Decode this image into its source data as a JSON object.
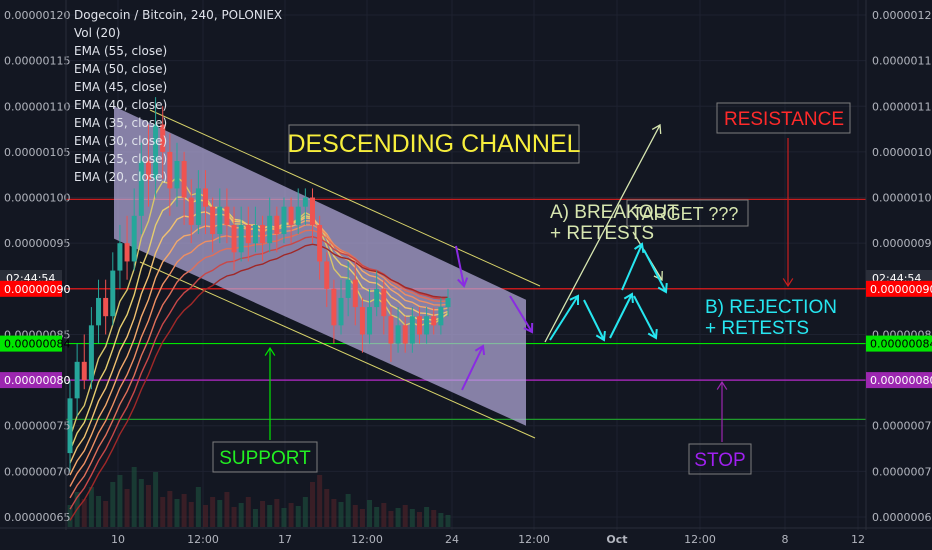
{
  "header": {
    "title": "Dogecoin / Bitcoin, 240, POLONIEX",
    "indicators": [
      "Vol (20)",
      "EMA (55, close)",
      "EMA (50, close)",
      "EMA (45, close)",
      "EMA (40, close)",
      "EMA (35, close)",
      "EMA (30, close)",
      "EMA (25, close)",
      "EMA (20, close)"
    ]
  },
  "price_axis": {
    "ticks": [
      "0.00000120",
      "0.00000115",
      "0.00000110",
      "0.00000105",
      "0.00000100",
      "0.00000095",
      "0.00000090",
      "0.00000085",
      "0.00000080",
      "0.00000075",
      "0.00000070",
      "0.00000065"
    ],
    "countdown": "02:44:54",
    "badges": [
      {
        "label": "0.00000090",
        "color": "#ff0000",
        "text_color": "#ffffff",
        "value": 9e-07
      },
      {
        "label": "0.00000084",
        "color": "#00e600",
        "text_color": "#000000",
        "value": 8.4e-07
      },
      {
        "label": "0.00000080",
        "color": "#9c27b0",
        "text_color": "#ffffff",
        "value": 8e-07
      }
    ]
  },
  "time_axis": {
    "ticks": [
      "10",
      "12:00",
      "17",
      "12:00",
      "24",
      "12:00",
      "Oct",
      "12:00",
      "8",
      "12"
    ]
  },
  "annotations": {
    "channel": "DESCENDING CHANNEL",
    "resistance": "RESISTANCE",
    "support": "SUPPORT",
    "stop": "STOP",
    "breakout_line1": "A) BREAKOUT",
    "breakout_line2": "+ RETESTS",
    "target": "TARGET ???",
    "rejection_line1": "B) REJECTION",
    "rejection_line2": "+ RETESTS"
  },
  "colors": {
    "background": "#131722",
    "resistance": "#ff1a1a",
    "support": "#00e600",
    "stop": "#9c27b0",
    "channel_fill": "#b3a9d9",
    "scenario_a": "#d7e6b0",
    "scenario_b": "#26e6f0",
    "arrow_purple": "#8a2be2"
  },
  "chart_data": {
    "type": "candlestick",
    "price_range": [
      6.4e-07,
      1.22e-06
    ],
    "levels": [
      {
        "name": "RESISTANCE",
        "value": 9.98e-07
      },
      {
        "name": "RESISTANCE",
        "value": 9e-07
      },
      {
        "name": "SUPPORT",
        "value": 8.4e-07
      },
      {
        "name": "STOP",
        "value": 8e-07
      },
      {
        "name": "SUPPORT",
        "value": 7.57e-07
      }
    ],
    "channel": {
      "upper": [
        [
          0.06,
          1.1e-06
        ],
        [
          0.575,
          8.88e-07
        ]
      ],
      "lower": [
        [
          0.06,
          9.55e-07
        ],
        [
          0.575,
          7.5e-07
        ]
      ]
    },
    "candles": [
      [
        7.2e-07,
        7.8e-07,
        7e-07,
        8e-07
      ],
      [
        7.8e-07,
        8.2e-07,
        7.6e-07,
        8.4e-07
      ],
      [
        8.2e-07,
        8e-07,
        7.9e-07,
        8.5e-07
      ],
      [
        8e-07,
        8.6e-07,
        7.9e-07,
        8.8e-07
      ],
      [
        8.6e-07,
        8.9e-07,
        8.4e-07,
        9.1e-07
      ],
      [
        8.9e-07,
        8.7e-07,
        8.5e-07,
        9.1e-07
      ],
      [
        8.7e-07,
        9.2e-07,
        8.6e-07,
        9.4e-07
      ],
      [
        9.2e-07,
        9.5e-07,
        9e-07,
        9.7e-07
      ],
      [
        9.5e-07,
        9.3e-07,
        9.1e-07,
        9.8e-07
      ],
      [
        9.3e-07,
        9.8e-07,
        9.2e-07,
        1.01e-06
      ],
      [
        9.8e-07,
        1.04e-06,
        9.6e-07,
        1.06e-06
      ],
      [
        1.04e-06,
        1.02e-06,
        9.9e-07,
        1.08e-06
      ],
      [
        1.02e-06,
        1.08e-06,
        1e-06,
        1.11e-06
      ],
      [
        1.08e-06,
        1.05e-06,
        1.02e-06,
        1.1e-06
      ],
      [
        1.05e-06,
        1.01e-06,
        9.8e-07,
        1.07e-06
      ],
      [
        1.01e-06,
        1.04e-06,
        9.9e-07,
        1.06e-06
      ],
      [
        1.04e-06,
        1e-06,
        9.7e-07,
        1.05e-06
      ],
      [
        1e-06,
        9.7e-07,
        9.5e-07,
        1.02e-06
      ],
      [
        9.7e-07,
        1.01e-06,
        9.6e-07,
        1.03e-06
      ],
      [
        1.01e-06,
        9.9e-07,
        9.6e-07,
        1.03e-06
      ],
      [
        9.9e-07,
        9.6e-07,
        9.4e-07,
        1e-06
      ],
      [
        9.6e-07,
        9.9e-07,
        9.5e-07,
        1.01e-06
      ],
      [
        9.9e-07,
        9.7e-07,
        9.5e-07,
        1.01e-06
      ],
      [
        9.7e-07,
        9.4e-07,
        9.2e-07,
        9.9e-07
      ],
      [
        9.4e-07,
        9.7e-07,
        9.3e-07,
        9.9e-07
      ],
      [
        9.7e-07,
        9.5e-07,
        9.3e-07,
        9.9e-07
      ],
      [
        9.5e-07,
        9.7e-07,
        9.4e-07,
        9.9e-07
      ],
      [
        9.7e-07,
        9.5e-07,
        9.3e-07,
        9.8e-07
      ],
      [
        9.5e-07,
        9.8e-07,
        9.4e-07,
        1e-06
      ],
      [
        9.8e-07,
        9.6e-07,
        9.4e-07,
        9.9e-07
      ],
      [
        9.6e-07,
        9.9e-07,
        9.5e-07,
        1e-06
      ],
      [
        9.9e-07,
        9.7e-07,
        9.5e-07,
        1e-06
      ],
      [
        9.7e-07,
        9.9e-07,
        9.6e-07,
        1.01e-06
      ],
      [
        9.9e-07,
        1e-06,
        9.7e-07,
        1.01e-06
      ],
      [
        1e-06,
        9.7e-07,
        9.5e-07,
        1.01e-06
      ],
      [
        9.7e-07,
        9.3e-07,
        9.1e-07,
        9.8e-07
      ],
      [
        9.3e-07,
        9e-07,
        8.8e-07,
        9.4e-07
      ],
      [
        9e-07,
        8.6e-07,
        8.4e-07,
        9.1e-07
      ],
      [
        8.6e-07,
        8.9e-07,
        8.5e-07,
        9.1e-07
      ],
      [
        8.9e-07,
        9.1e-07,
        8.7e-07,
        9.3e-07
      ],
      [
        9.1e-07,
        8.8e-07,
        8.6e-07,
        9.3e-07
      ],
      [
        8.8e-07,
        8.5e-07,
        8.3e-07,
        8.9e-07
      ],
      [
        8.5e-07,
        8.8e-07,
        8.4e-07,
        9e-07
      ],
      [
        8.8e-07,
        9e-07,
        8.7e-07,
        9.2e-07
      ],
      [
        9e-07,
        8.7e-07,
        8.5e-07,
        9.1e-07
      ],
      [
        8.7e-07,
        8.4e-07,
        8.2e-07,
        8.8e-07
      ],
      [
        8.4e-07,
        8.6e-07,
        8.3e-07,
        8.8e-07
      ],
      [
        8.6e-07,
        8.4e-07,
        8.3e-07,
        8.7e-07
      ],
      [
        8.4e-07,
        8.7e-07,
        8.3e-07,
        8.8e-07
      ],
      [
        8.7e-07,
        8.5e-07,
        8.4e-07,
        8.8e-07
      ],
      [
        8.5e-07,
        8.7e-07,
        8.4e-07,
        8.8e-07
      ],
      [
        8.7e-07,
        8.6e-07,
        8.5e-07,
        8.8e-07
      ],
      [
        8.6e-07,
        8.8e-07,
        8.5e-07,
        8.9e-07
      ],
      [
        8.8e-07,
        8.9e-07,
        8.7e-07,
        9e-07
      ]
    ],
    "volume": [
      22,
      35,
      28,
      40,
      31,
      26,
      45,
      52,
      38,
      60,
      48,
      42,
      55,
      30,
      36,
      28,
      33,
      25,
      40,
      22,
      30,
      27,
      35,
      20,
      24,
      30,
      18,
      26,
      22,
      28,
      19,
      24,
      21,
      30,
      45,
      52,
      38,
      28,
      25,
      33,
      22,
      18,
      27,
      20,
      24,
      16,
      19,
      22,
      18,
      15,
      20,
      17,
      14,
      12
    ]
  }
}
